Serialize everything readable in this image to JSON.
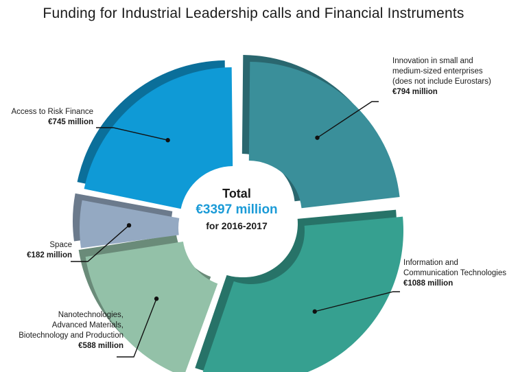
{
  "chart_data": {
    "type": "pie",
    "title": "Funding for Industrial Leadership calls and Financial Instruments",
    "center": {
      "line1": "Total",
      "line2": "€3397 million",
      "line3": "for 2016-2017"
    },
    "slices": [
      {
        "label": "Innovation in small and medium-sized enterprises (does not include Eurostars)",
        "label_lines": [
          "Innovation in small and",
          "medium-sized enterprises",
          "(does not include Eurostars)"
        ],
        "value": 794,
        "value_label": "€794 million",
        "color": "#3a8f9a"
      },
      {
        "label": "Information and Communication Technologies",
        "label_lines": [
          "Information and",
          "Communication Technologies"
        ],
        "value": 1088,
        "value_label": "€1088 million",
        "color": "#36a090"
      },
      {
        "label": "Nanotechnologies, Advanced Materials, Biotechnology and Production",
        "label_lines": [
          "Nanotechnologies,",
          "Advanced Materials,",
          "Biotechnology and Production"
        ],
        "value": 588,
        "value_label": "€588 million",
        "color": "#93c1a8"
      },
      {
        "label": "Space",
        "label_lines": [
          "Space"
        ],
        "value": 182,
        "value_label": "€182 million",
        "color": "#94a9c2"
      },
      {
        "label": "Access to Risk Finance",
        "label_lines": [
          "Access to Risk Finance"
        ],
        "value": 745,
        "value_label": "€745 million",
        "color": "#0f9ad6"
      }
    ],
    "colors": {
      "accent": "#1b9bd7"
    }
  }
}
